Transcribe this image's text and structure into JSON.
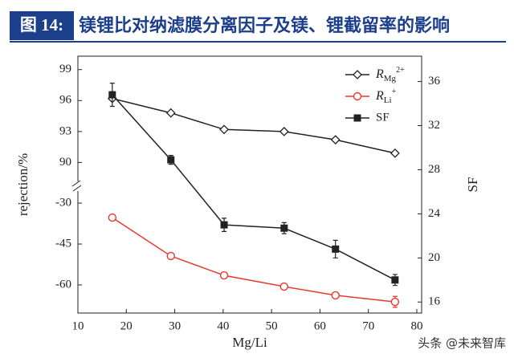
{
  "header": {
    "label": "图 14:",
    "title": "镁锂比对纳滤膜分离因子及镁、锂截留率的影响"
  },
  "watermark": "头条 @未来智库",
  "chart_data": {
    "type": "line",
    "x_label": "Mg/Li",
    "y_label": "rejection/%",
    "y2_label": "SF",
    "xlim": [
      10,
      81
    ],
    "xticks": [
      10,
      20,
      30,
      40,
      50,
      60,
      70,
      80
    ],
    "y_segments": [
      {
        "ylim": [
          -70.3,
          -23.8
        ],
        "yticks": [
          -60,
          -45,
          -30
        ]
      },
      {
        "ylim": [
          87.7,
          100.3
        ],
        "yticks": [
          90,
          93,
          96,
          99
        ]
      }
    ],
    "y2lim": [
      15,
      38.3
    ],
    "y2ticks": [
      16,
      20,
      24,
      28,
      32,
      36
    ],
    "legend": "upper right",
    "x": [
      17.1,
      29.2,
      40.2,
      52.6,
      63.2,
      75.5
    ],
    "series": [
      {
        "name": "RMg2+",
        "color": "#222222",
        "marker": "diamond",
        "values": [
          96.2,
          94.8,
          93.2,
          93.0,
          92.2,
          90.9
        ]
      },
      {
        "name": "RLi+",
        "color": "#e8392b",
        "marker": "circle",
        "values": [
          -35.3,
          -49.4,
          -56.5,
          -60.6,
          -63.8,
          -66.2
        ],
        "errors": [
          0.4,
          0.6,
          0.8,
          0.6,
          1.0,
          2.0
        ]
      },
      {
        "name": "SF",
        "color": "#222222",
        "marker": "square",
        "axis": "y2",
        "values": [
          34.8,
          28.9,
          23.0,
          22.7,
          20.8,
          18.0
        ],
        "errors": [
          1.05,
          0.4,
          0.6,
          0.5,
          0.8,
          0.5
        ]
      }
    ]
  }
}
